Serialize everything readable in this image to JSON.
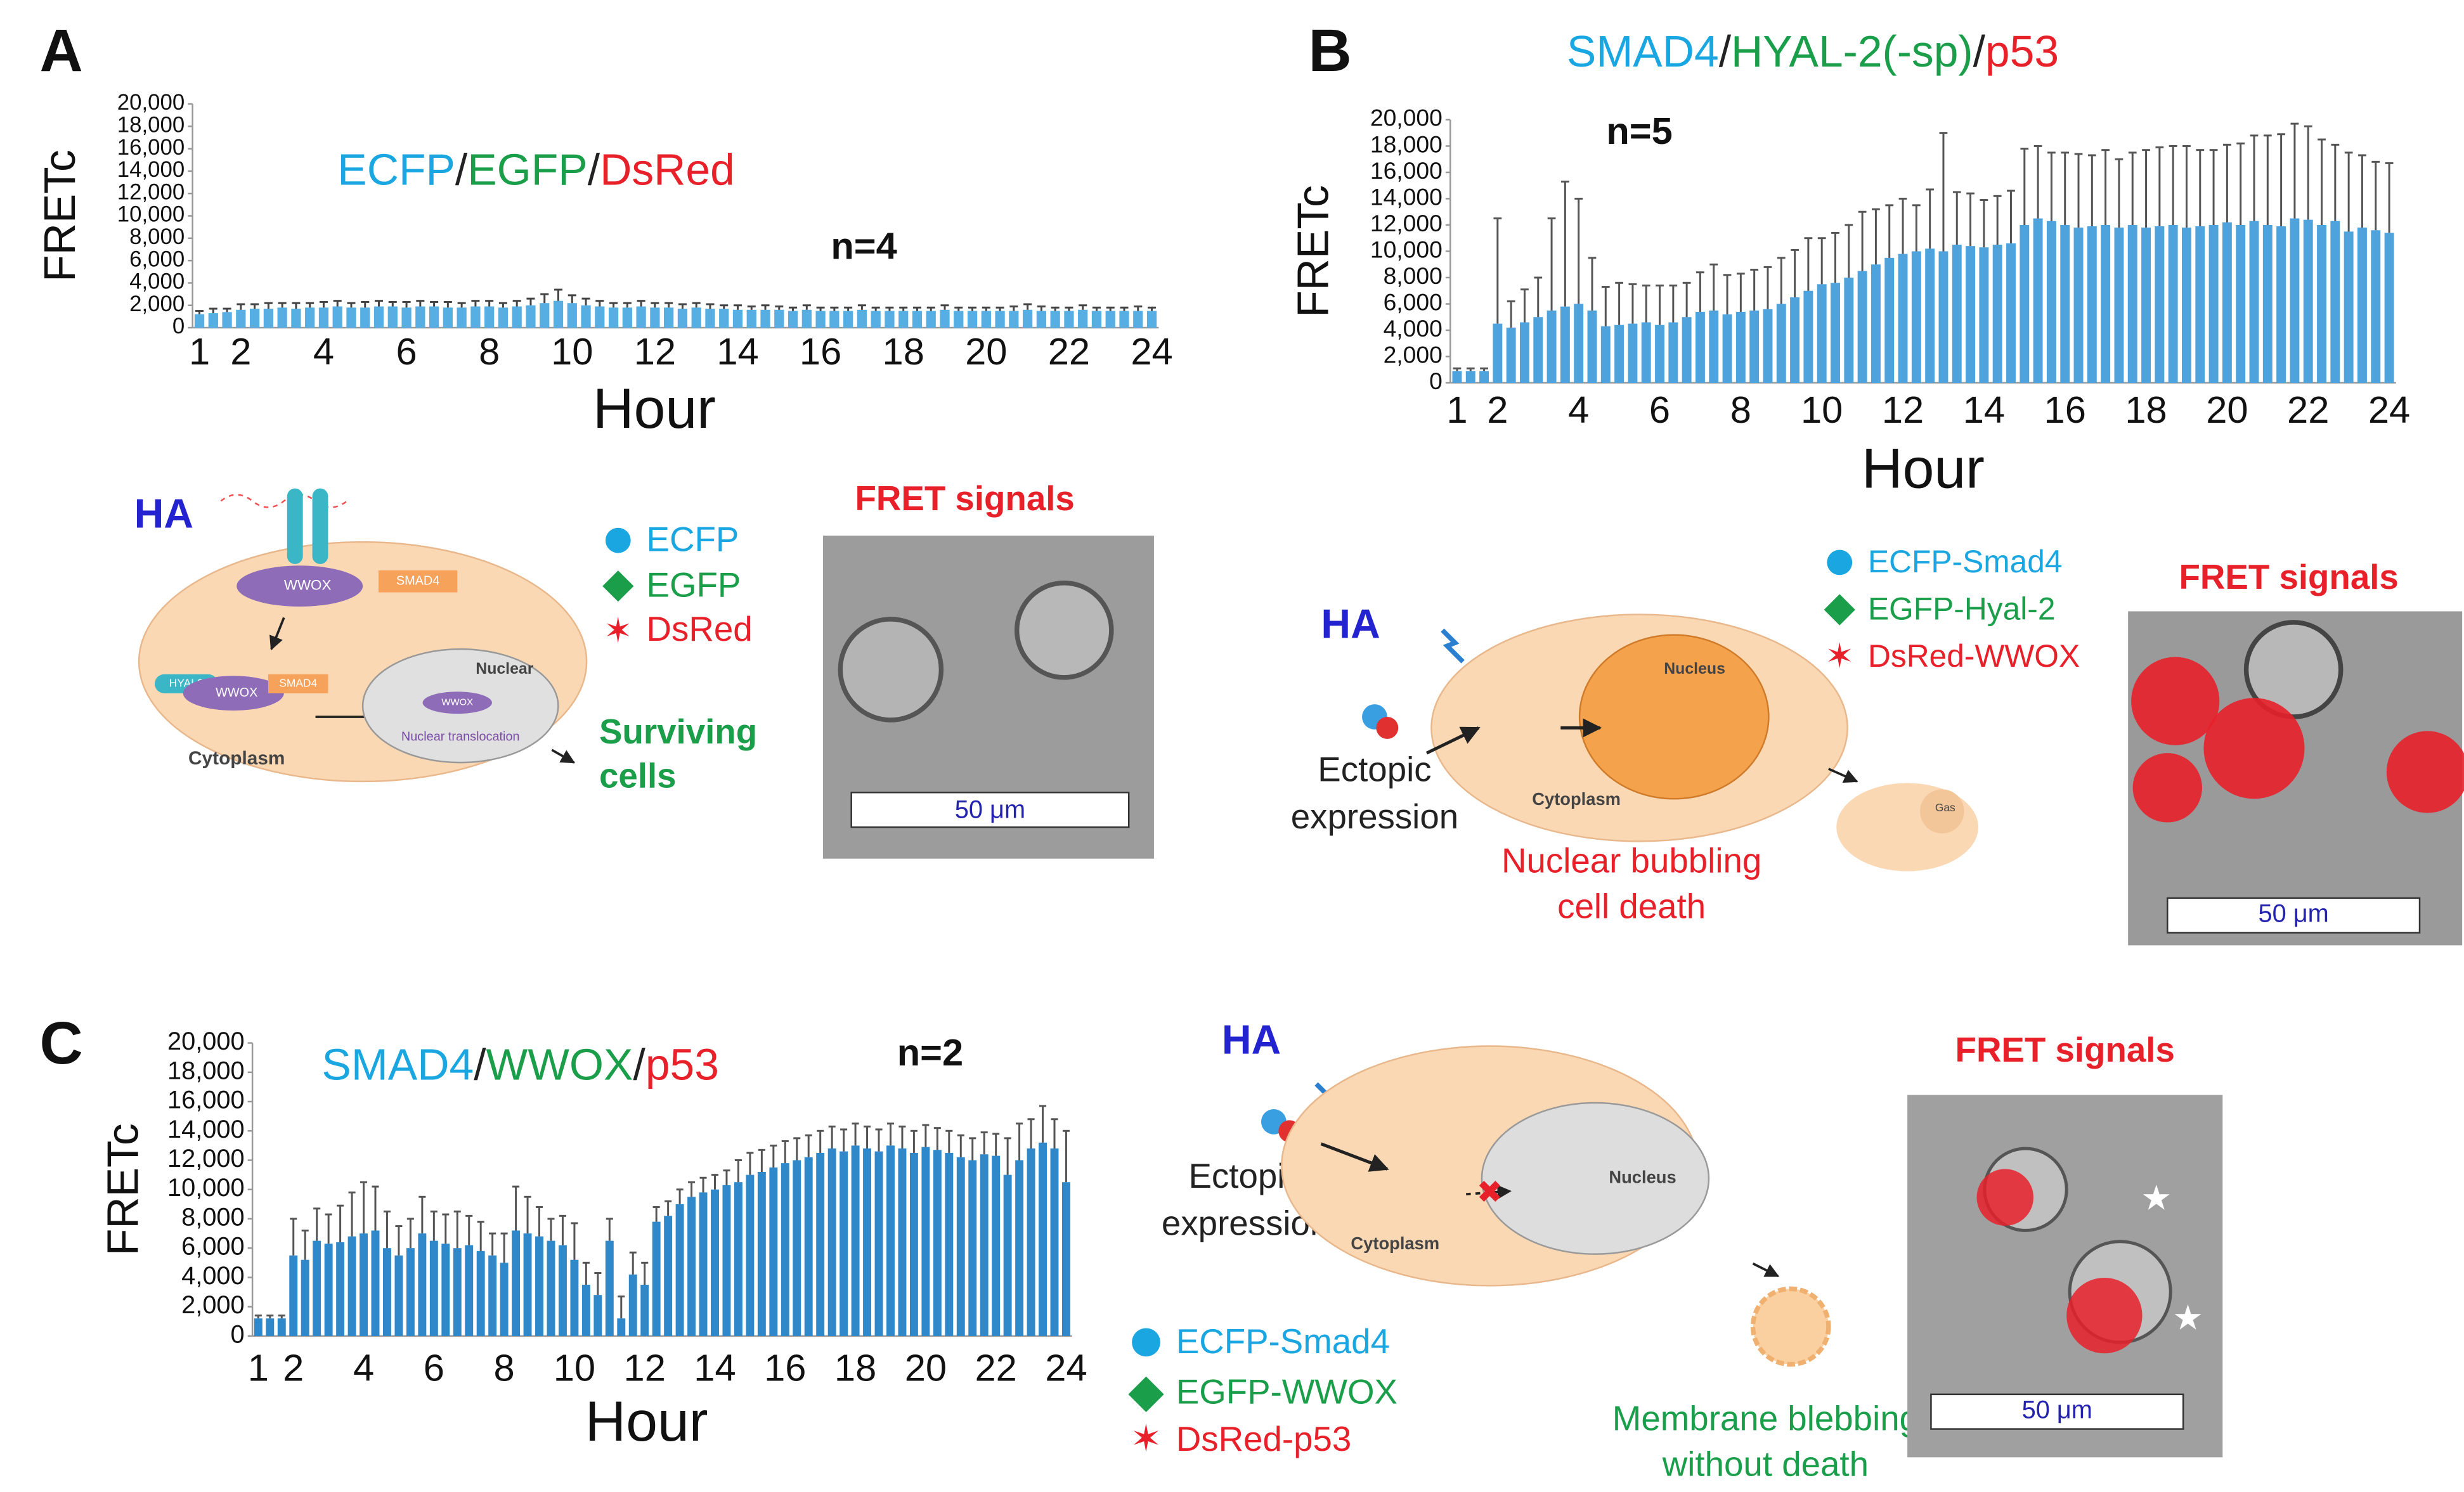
{
  "chart_data": [
    {
      "type": "bar",
      "panel": "A",
      "title_parts": [
        "ECFP",
        "/",
        "EGFP",
        "/",
        "DsRed"
      ],
      "title_colors": [
        "#1aa6e0",
        "#222222",
        "#1a9e4a",
        "#222222",
        "#e8202a"
      ],
      "annotation": "n=4",
      "ylabel": "FRETc",
      "xlabel": "Hour",
      "color": "#56aee2",
      "error_color": "#444444",
      "categories": [
        "1",
        null,
        null,
        "2",
        null,
        null,
        null,
        null,
        null,
        "4",
        null,
        null,
        null,
        null,
        null,
        "6",
        null,
        null,
        null,
        null,
        null,
        "8",
        null,
        null,
        null,
        null,
        null,
        "10",
        null,
        null,
        null,
        null,
        null,
        "12",
        null,
        null,
        null,
        null,
        null,
        "14",
        null,
        null,
        null,
        null,
        null,
        "16",
        null,
        null,
        null,
        null,
        null,
        "18",
        null,
        null,
        null,
        null,
        null,
        "20",
        null,
        null,
        null,
        null,
        null,
        "22",
        null,
        null,
        null,
        null,
        null,
        "24"
      ],
      "values": [
        1200,
        1300,
        1400,
        1600,
        1700,
        1700,
        1800,
        1700,
        1800,
        1800,
        1900,
        1800,
        1800,
        1900,
        1900,
        1800,
        1900,
        1900,
        1800,
        1800,
        1900,
        1900,
        1800,
        1900,
        2000,
        2200,
        2400,
        2200,
        2000,
        1900,
        1800,
        1800,
        1900,
        1800,
        1800,
        1700,
        1800,
        1700,
        1700,
        1600,
        1600,
        1600,
        1600,
        1500,
        1600,
        1500,
        1500,
        1500,
        1600,
        1500,
        1500,
        1500,
        1500,
        1500,
        1600,
        1500,
        1500,
        1500,
        1500,
        1500,
        1600,
        1500,
        1500,
        1500,
        1600,
        1500,
        1500,
        1500,
        1500,
        1500
      ],
      "errors": [
        300,
        400,
        300,
        500,
        400,
        500,
        400,
        500,
        400,
        500,
        500,
        400,
        500,
        500,
        400,
        500,
        500,
        400,
        500,
        400,
        500,
        500,
        400,
        500,
        600,
        800,
        1000,
        700,
        600,
        500,
        400,
        400,
        500,
        400,
        400,
        400,
        400,
        400,
        300,
        400,
        300,
        400,
        300,
        300,
        400,
        300,
        300,
        300,
        400,
        300,
        300,
        300,
        300,
        300,
        400,
        300,
        300,
        300,
        300,
        400,
        500,
        400,
        300,
        300,
        400,
        300,
        300,
        300,
        400,
        300
      ],
      "ylim": [
        0,
        20000
      ],
      "yticks": [
        0,
        {
          "value": 2000,
          "label": "2,000"
        },
        {
          "value": 4000,
          "label": "4,000"
        },
        {
          "value": 6000,
          "label": "6,000"
        },
        {
          "value": 8000,
          "label": "8,000"
        },
        {
          "value": 10000,
          "label": "10,000"
        },
        {
          "value": 12000,
          "label": "12,000"
        },
        {
          "value": 14000,
          "label": "14,000"
        },
        {
          "value": 16000,
          "label": "16,000"
        },
        {
          "value": 18000,
          "label": "18,000"
        },
        {
          "value": 20000,
          "label": "20,000"
        }
      ]
    },
    {
      "type": "bar",
      "panel": "B",
      "title_parts": [
        "SMAD4",
        "/",
        "HYAL-2(-sp)",
        "/",
        "p53"
      ],
      "title_colors": [
        "#1aa6e0",
        "#222222",
        "#1a9e4a",
        "#222222",
        "#e8202a"
      ],
      "annotation": "n=5",
      "ylabel": "FRETc",
      "xlabel": "Hour",
      "color": "#4fa3dc",
      "error_color": "#555555",
      "categories": [
        "1",
        null,
        null,
        "2",
        null,
        null,
        null,
        null,
        null,
        "4",
        null,
        null,
        null,
        null,
        null,
        "6",
        null,
        null,
        null,
        null,
        null,
        "8",
        null,
        null,
        null,
        null,
        null,
        "10",
        null,
        null,
        null,
        null,
        null,
        "12",
        null,
        null,
        null,
        null,
        null,
        "14",
        null,
        null,
        null,
        null,
        null,
        "16",
        null,
        null,
        null,
        null,
        null,
        "18",
        null,
        null,
        null,
        null,
        null,
        "20",
        null,
        null,
        null,
        null,
        null,
        "22",
        null,
        null,
        null,
        null,
        null,
        "24"
      ],
      "values": [
        900,
        900,
        900,
        4500,
        4200,
        4600,
        5000,
        5500,
        5800,
        6000,
        5500,
        4300,
        4400,
        4500,
        4600,
        4400,
        4600,
        5000,
        5400,
        5500,
        5200,
        5400,
        5500,
        5600,
        6000,
        6500,
        7000,
        7500,
        7600,
        8000,
        8500,
        9000,
        9500,
        9800,
        10000,
        10200,
        10000,
        10500,
        10400,
        10300,
        10500,
        10600,
        12000,
        12500,
        12300,
        12000,
        11800,
        11900,
        12000,
        11800,
        12000,
        11800,
        11900,
        12000,
        11800,
        11900,
        12000,
        12200,
        12000,
        12300,
        12000,
        11900,
        12500,
        12400,
        12000,
        12300,
        11500,
        11800,
        11600,
        11400
      ],
      "errors": [
        200,
        200,
        200,
        8000,
        2000,
        2500,
        3000,
        7000,
        9500,
        8000,
        4000,
        3000,
        3200,
        3000,
        2800,
        3000,
        2800,
        2600,
        3000,
        3500,
        3000,
        2900,
        3100,
        3200,
        3500,
        3600,
        4000,
        3500,
        3800,
        4000,
        4500,
        4200,
        4000,
        4200,
        3500,
        4500,
        9000,
        4000,
        4000,
        3600,
        3700,
        4000,
        5800,
        5500,
        5200,
        5500,
        5600,
        5400,
        5700,
        5200,
        5500,
        5900,
        6000,
        6000,
        6200,
        5800,
        5700,
        5900,
        6200,
        6500,
        6800,
        7000,
        7200,
        7100,
        6500,
        5800,
        6000,
        5500,
        5200,
        5300
      ],
      "ylim": [
        0,
        20000
      ],
      "yticks": [
        0,
        {
          "value": 2000,
          "label": "2,000"
        },
        {
          "value": 4000,
          "label": "4,000"
        },
        {
          "value": 6000,
          "label": "6,000"
        },
        {
          "value": 8000,
          "label": "8,000"
        },
        {
          "value": 10000,
          "label": "10,000"
        },
        {
          "value": 12000,
          "label": "12,000"
        },
        {
          "value": 14000,
          "label": "14,000"
        },
        {
          "value": 16000,
          "label": "16,000"
        },
        {
          "value": 18000,
          "label": "18,000"
        },
        {
          "value": 20000,
          "label": "20,000"
        }
      ]
    },
    {
      "type": "bar",
      "panel": "C",
      "title_parts": [
        "SMAD4",
        "/",
        "WWOX",
        "/",
        "p53"
      ],
      "title_colors": [
        "#1aa6e0",
        "#222222",
        "#1a9e4a",
        "#222222",
        "#e8202a"
      ],
      "annotation": "n=2",
      "ylabel": "FRETc",
      "xlabel": "Hour",
      "color": "#2f88c9",
      "error_color": "#555555",
      "categories": [
        "1",
        null,
        null,
        "2",
        null,
        null,
        null,
        null,
        null,
        "4",
        null,
        null,
        null,
        null,
        null,
        "6",
        null,
        null,
        null,
        null,
        null,
        "8",
        null,
        null,
        null,
        null,
        null,
        "10",
        null,
        null,
        null,
        null,
        null,
        "12",
        null,
        null,
        null,
        null,
        null,
        "14",
        null,
        null,
        null,
        null,
        null,
        "16",
        null,
        null,
        null,
        null,
        null,
        "18",
        null,
        null,
        null,
        null,
        null,
        "20",
        null,
        null,
        null,
        null,
        null,
        "22",
        null,
        null,
        null,
        null,
        null,
        "24"
      ],
      "values": [
        1200,
        1200,
        1200,
        5500,
        5200,
        6500,
        6300,
        6400,
        6800,
        7000,
        7200,
        6000,
        5500,
        6000,
        7000,
        6500,
        6300,
        6000,
        6200,
        5800,
        5500,
        5000,
        7200,
        7000,
        6800,
        6500,
        6200,
        5200,
        3500,
        2800,
        6500,
        1200,
        4200,
        3500,
        7800,
        8200,
        9000,
        9500,
        9800,
        10000,
        10300,
        10500,
        11000,
        11200,
        11500,
        11800,
        12000,
        12200,
        12500,
        12800,
        12600,
        13000,
        12800,
        12600,
        13000,
        12800,
        12500,
        12900,
        12700,
        12500,
        12200,
        12000,
        12400,
        12300,
        11000,
        12000,
        12800,
        13200,
        12800,
        10500
      ],
      "errors": [
        200,
        200,
        200,
        2500,
        2000,
        2200,
        2000,
        2500,
        3000,
        3500,
        3000,
        2500,
        2000,
        2000,
        2500,
        2000,
        2000,
        2500,
        2000,
        2000,
        1500,
        2000,
        3000,
        2500,
        2000,
        1500,
        2000,
        2500,
        1500,
        1500,
        1500,
        1500,
        1500,
        1500,
        1000,
        1000,
        1000,
        1000,
        1000,
        1000,
        1000,
        1500,
        1500,
        1500,
        1500,
        1500,
        1500,
        1500,
        1500,
        1500,
        1500,
        1500,
        1500,
        1500,
        1500,
        1500,
        1500,
        1500,
        1500,
        1500,
        1500,
        1500,
        1500,
        1500,
        2500,
        2500,
        2000,
        2500,
        2000,
        3500
      ],
      "ylim": [
        0,
        20000
      ],
      "yticks": [
        0,
        {
          "value": 2000,
          "label": "2,000"
        },
        {
          "value": 4000,
          "label": "4,000"
        },
        {
          "value": 6000,
          "label": "6,000"
        },
        {
          "value": 8000,
          "label": "8,000"
        },
        {
          "value": 10000,
          "label": "10,000"
        },
        {
          "value": 12000,
          "label": "12,000"
        },
        {
          "value": 14000,
          "label": "14,000"
        },
        {
          "value": 16000,
          "label": "16,000"
        },
        {
          "value": 18000,
          "label": "18,000"
        },
        {
          "value": 20000,
          "label": "20,000"
        }
      ]
    }
  ],
  "diagrams": [
    {
      "ha": "HA",
      "wwox": [
        "WWOX",
        "WWOX",
        "WWOX"
      ],
      "smad4": [
        "SMAD4",
        "SMAD4"
      ],
      "hyal2": "HYAL2",
      "nuclear": "Nuclear",
      "translocation": "Nuclear translocation",
      "cytoplasm": "Cytoplasm",
      "legend": [
        "ECFP",
        "EGFP",
        "DsRed"
      ],
      "outcome": [
        "Surviving",
        "cells"
      ],
      "fret": "FRET signals",
      "scale": "50 μm"
    },
    {
      "ha": "HA",
      "ectopic": [
        "Ectopic",
        "expression"
      ],
      "nucleus": "Nucleus",
      "cytoplasm": "Cytoplasm",
      "gas": "Gas",
      "legend": [
        "ECFP-Smad4",
        "EGFP-Hyal-2",
        "DsRed-WWOX"
      ],
      "outcome": [
        "Nuclear bubbling",
        "cell death"
      ],
      "fret": "FRET signals",
      "scale": "50 μm"
    },
    {
      "ha": "HA",
      "ectopic": [
        "Ectopic",
        "expression"
      ],
      "nucleus": "Nucleus",
      "cytoplasm": "Cytoplasm",
      "legend": [
        "ECFP-Smad4",
        "EGFP-WWOX",
        "DsRed-p53"
      ],
      "outcome": [
        "Membrane blebbing",
        "without death"
      ],
      "fret": "FRET signals",
      "scale": "50 μm"
    }
  ]
}
